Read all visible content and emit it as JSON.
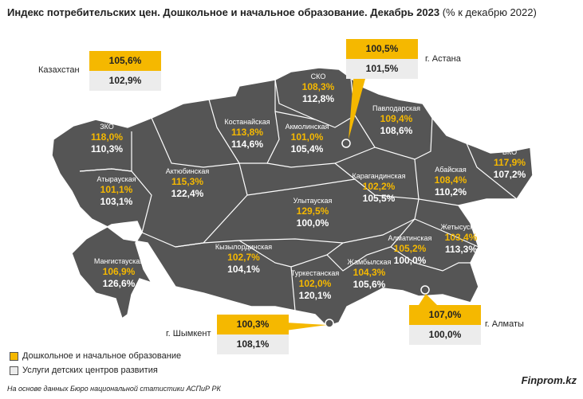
{
  "title": {
    "bold": "Индекс потребительских цен. Дошкольное и начальное образование. Декабрь 2023",
    "rest": " (% к декабрю 2022)"
  },
  "colors": {
    "preschool": "#f5b800",
    "centers": "#ececec",
    "map": "#555555"
  },
  "kazakhstan": {
    "label": "Казахстан",
    "v1": "105,6%",
    "v2": "102,9%"
  },
  "astana": {
    "label": "г. Астана",
    "v1": "100,5%",
    "v2": "101,5%"
  },
  "shymkent": {
    "label": "г. Шымкент",
    "v1": "100,3%",
    "v2": "108,1%"
  },
  "almaty": {
    "label": "г. Алматы",
    "v1": "107,0%",
    "v2": "100,0%"
  },
  "regions": {
    "sko": {
      "name": "СКО",
      "v1": "108,3%",
      "v2": "112,8%"
    },
    "kostanay": {
      "name": "Костанайская",
      "v1": "113,8%",
      "v2": "114,6%"
    },
    "akmola": {
      "name": "Акмолинская",
      "v1": "101,0%",
      "v2": "105,4%"
    },
    "pavlodar": {
      "name": "Павлодарская",
      "v1": "109,4%",
      "v2": "108,6%"
    },
    "zko": {
      "name": "ЗКО",
      "v1": "118,0%",
      "v2": "110,3%"
    },
    "atyrau": {
      "name": "Атырауская",
      "v1": "101,1%",
      "v2": "103,1%"
    },
    "aktobe": {
      "name": "Актюбинская",
      "v1": "115,3%",
      "v2": "122,4%"
    },
    "karaganda": {
      "name": "Карагандинская",
      "v1": "102,2%",
      "v2": "105,5%"
    },
    "abay": {
      "name": "Абайская",
      "v1": "108,4%",
      "v2": "110,2%"
    },
    "vko": {
      "name": "ВКО",
      "v1": "117,9%",
      "v2": "107,2%"
    },
    "ulytau": {
      "name": "Улытауская",
      "v1": "129,5%",
      "v2": "100,0%"
    },
    "zhetysu": {
      "name": "Жетысуская",
      "v1": "103,4%",
      "v2": "113,3%"
    },
    "almaty_reg": {
      "name": "Алматинская",
      "v1": "105,2%",
      "v2": "100,0%"
    },
    "mangystau": {
      "name": "Мангистауская",
      "v1": "106,9%",
      "v2": "126,6%"
    },
    "kyzylorda": {
      "name": "Кызылординская",
      "v1": "102,7%",
      "v2": "104,1%"
    },
    "turkestan": {
      "name": "Туркестанская",
      "v1": "102,0%",
      "v2": "120,1%"
    },
    "zhambyl": {
      "name": "Жамбылская",
      "v1": "104,3%",
      "v2": "105,6%"
    }
  },
  "legend": {
    "item1": "Дошкольное и начальное образование",
    "item2": "Услуги детских центров развития"
  },
  "source": "На основе данных Бюро национальной статистики АСПиР РК",
  "brand": "Finprom.kz"
}
